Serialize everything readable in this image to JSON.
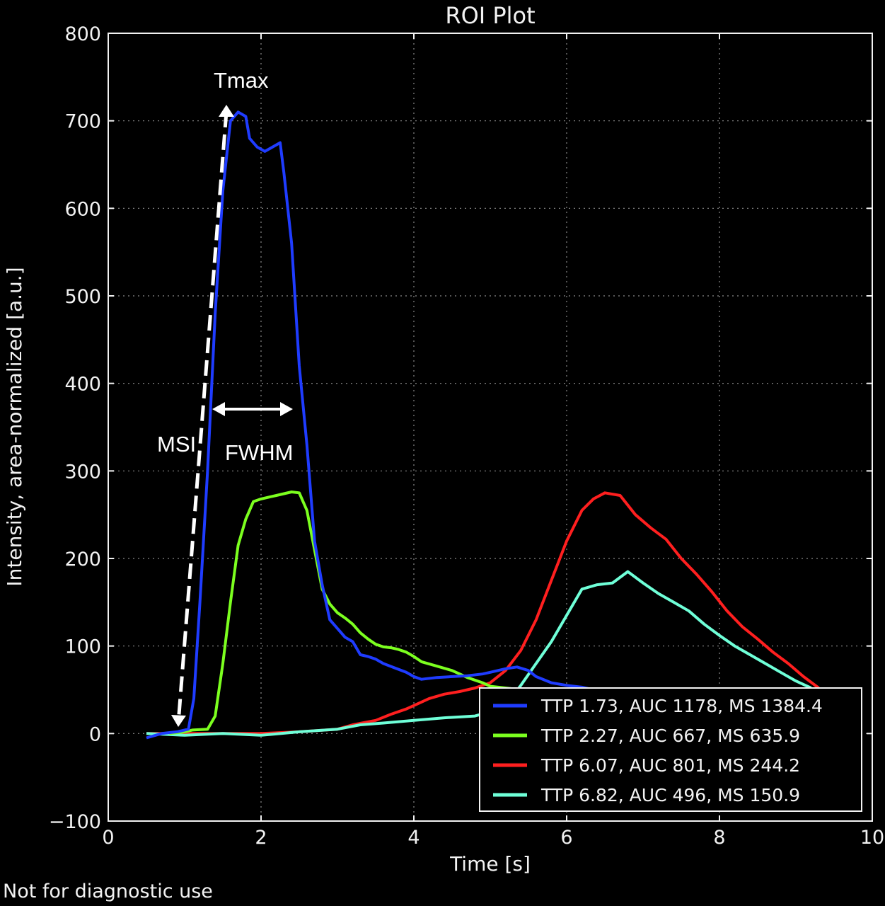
{
  "chart_data": {
    "type": "line",
    "title": "ROI Plot",
    "xlabel": "Time [s]",
    "ylabel": "Intensity, area-normalized [a.u.]",
    "xlim": [
      0,
      10
    ],
    "ylim": [
      -100,
      800
    ],
    "x_ticks": [
      0,
      2,
      4,
      6,
      8,
      10
    ],
    "y_ticks": [
      -100,
      0,
      100,
      200,
      300,
      400,
      500,
      600,
      700,
      800
    ],
    "x_tick_labels": [
      "0",
      "2",
      "4",
      "6",
      "8",
      "10"
    ],
    "y_tick_labels": [
      "−100",
      "0",
      "100",
      "200",
      "300",
      "400",
      "500",
      "600",
      "700",
      "800"
    ],
    "grid": true,
    "legend_position": "bottom-right",
    "background": "#000000",
    "series": [
      {
        "name": "TTP 1.73, AUC 1178, MS 1384.4",
        "color": "#1f3cff",
        "points": [
          [
            0.5,
            -5
          ],
          [
            0.7,
            0
          ],
          [
            0.9,
            2
          ],
          [
            1.05,
            5
          ],
          [
            1.12,
            40
          ],
          [
            1.2,
            150
          ],
          [
            1.3,
            300
          ],
          [
            1.4,
            480
          ],
          [
            1.5,
            620
          ],
          [
            1.6,
            700
          ],
          [
            1.7,
            710
          ],
          [
            1.8,
            705
          ],
          [
            1.85,
            680
          ],
          [
            1.95,
            670
          ],
          [
            2.05,
            665
          ],
          [
            2.15,
            670
          ],
          [
            2.25,
            675
          ],
          [
            2.3,
            640
          ],
          [
            2.4,
            560
          ],
          [
            2.5,
            420
          ],
          [
            2.6,
            330
          ],
          [
            2.7,
            220
          ],
          [
            2.8,
            170
          ],
          [
            2.9,
            130
          ],
          [
            3.0,
            120
          ],
          [
            3.1,
            110
          ],
          [
            3.2,
            105
          ],
          [
            3.3,
            90
          ],
          [
            3.4,
            88
          ],
          [
            3.5,
            85
          ],
          [
            3.6,
            80
          ],
          [
            3.75,
            75
          ],
          [
            3.9,
            70
          ],
          [
            4.0,
            65
          ],
          [
            4.1,
            62
          ],
          [
            4.3,
            64
          ],
          [
            4.5,
            65
          ],
          [
            4.7,
            66
          ],
          [
            4.9,
            68
          ],
          [
            5.0,
            70
          ],
          [
            5.2,
            74
          ],
          [
            5.35,
            76
          ],
          [
            5.5,
            72
          ],
          [
            5.6,
            65
          ],
          [
            5.8,
            58
          ],
          [
            6.0,
            55
          ],
          [
            6.2,
            53
          ],
          [
            6.35,
            50
          ]
        ]
      },
      {
        "name": "TTP 2.27, AUC 667, MS 635.9",
        "color": "#7cff1f",
        "points": [
          [
            0.8,
            0
          ],
          [
            1.0,
            2
          ],
          [
            1.1,
            4
          ],
          [
            1.3,
            5
          ],
          [
            1.4,
            20
          ],
          [
            1.5,
            80
          ],
          [
            1.6,
            150
          ],
          [
            1.7,
            215
          ],
          [
            1.8,
            245
          ],
          [
            1.9,
            265
          ],
          [
            2.0,
            268
          ],
          [
            2.1,
            270
          ],
          [
            2.2,
            272
          ],
          [
            2.3,
            274
          ],
          [
            2.4,
            276
          ],
          [
            2.5,
            275
          ],
          [
            2.6,
            255
          ],
          [
            2.7,
            210
          ],
          [
            2.8,
            165
          ],
          [
            2.9,
            148
          ],
          [
            3.0,
            138
          ],
          [
            3.1,
            132
          ],
          [
            3.2,
            125
          ],
          [
            3.3,
            115
          ],
          [
            3.4,
            108
          ],
          [
            3.5,
            102
          ],
          [
            3.6,
            99
          ],
          [
            3.7,
            98
          ],
          [
            3.8,
            96
          ],
          [
            3.9,
            93
          ],
          [
            4.0,
            88
          ],
          [
            4.1,
            82
          ],
          [
            4.3,
            77
          ],
          [
            4.5,
            72
          ],
          [
            4.6,
            68
          ],
          [
            4.7,
            64
          ],
          [
            4.9,
            58
          ],
          [
            5.0,
            54
          ],
          [
            5.2,
            52
          ],
          [
            5.4,
            50
          ],
          [
            5.5,
            48
          ]
        ]
      },
      {
        "name": "TTP 6.07, AUC 801, MS 244.2",
        "color": "#ff1f1f",
        "points": [
          [
            0.5,
            0
          ],
          [
            1.0,
            0
          ],
          [
            1.5,
            0
          ],
          [
            2.0,
            0
          ],
          [
            2.5,
            2
          ],
          [
            3.0,
            5
          ],
          [
            3.2,
            10
          ],
          [
            3.5,
            15
          ],
          [
            3.7,
            22
          ],
          [
            3.9,
            28
          ],
          [
            4.0,
            32
          ],
          [
            4.2,
            40
          ],
          [
            4.4,
            45
          ],
          [
            4.6,
            48
          ],
          [
            4.8,
            52
          ],
          [
            5.0,
            58
          ],
          [
            5.2,
            72
          ],
          [
            5.4,
            95
          ],
          [
            5.6,
            130
          ],
          [
            5.8,
            175
          ],
          [
            6.0,
            220
          ],
          [
            6.2,
            255
          ],
          [
            6.35,
            268
          ],
          [
            6.5,
            275
          ],
          [
            6.7,
            272
          ],
          [
            6.9,
            250
          ],
          [
            7.1,
            235
          ],
          [
            7.3,
            222
          ],
          [
            7.5,
            200
          ],
          [
            7.7,
            182
          ],
          [
            7.9,
            162
          ],
          [
            8.1,
            140
          ],
          [
            8.3,
            122
          ],
          [
            8.5,
            108
          ],
          [
            8.7,
            93
          ],
          [
            8.9,
            80
          ],
          [
            9.1,
            65
          ],
          [
            9.3,
            52
          ]
        ]
      },
      {
        "name": "TTP 6.82, AUC 496, MS 150.9",
        "color": "#6fffd8",
        "points": [
          [
            0.5,
            0
          ],
          [
            1.0,
            -2
          ],
          [
            1.5,
            0
          ],
          [
            2.0,
            -2
          ],
          [
            2.5,
            2
          ],
          [
            3.0,
            5
          ],
          [
            3.3,
            10
          ],
          [
            3.6,
            12
          ],
          [
            4.0,
            15
          ],
          [
            4.4,
            18
          ],
          [
            4.8,
            20
          ],
          [
            5.0,
            25
          ],
          [
            5.2,
            32
          ],
          [
            5.4,
            55
          ],
          [
            5.6,
            80
          ],
          [
            5.8,
            105
          ],
          [
            6.0,
            135
          ],
          [
            6.2,
            165
          ],
          [
            6.4,
            170
          ],
          [
            6.6,
            172
          ],
          [
            6.8,
            185
          ],
          [
            7.0,
            172
          ],
          [
            7.2,
            160
          ],
          [
            7.4,
            150
          ],
          [
            7.6,
            140
          ],
          [
            7.8,
            125
          ],
          [
            8.0,
            112
          ],
          [
            8.2,
            100
          ],
          [
            8.4,
            90
          ],
          [
            8.6,
            80
          ],
          [
            8.8,
            70
          ],
          [
            9.0,
            60
          ],
          [
            9.2,
            52
          ]
        ]
      }
    ]
  },
  "annotations": {
    "tmax": "Tmax",
    "msi": "MSI",
    "fwhm": "FWHM"
  },
  "footer": "Not for diagnostic use"
}
